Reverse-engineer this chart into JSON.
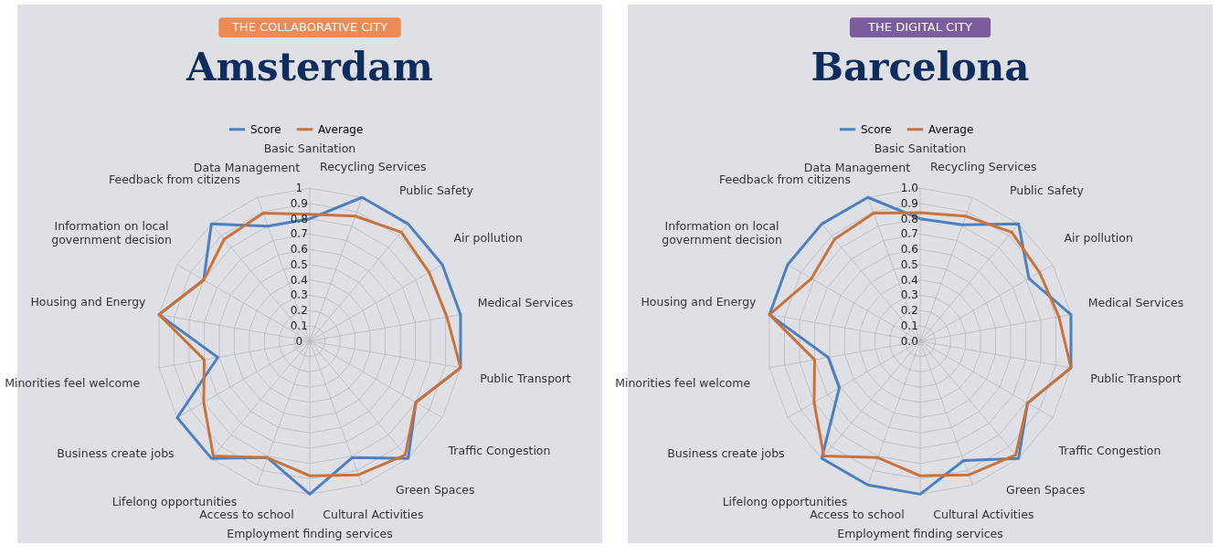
{
  "chart_data": [
    {
      "type": "radar",
      "title": "Amsterdam",
      "annotations": [
        "THE COLLABORATIVE CITY"
      ],
      "categories": [
        "Basic Sanitation",
        "Recycling Services",
        "Public Safety",
        "Air pollution",
        "Medical Services",
        "Public Transport",
        "Traffic Congestion",
        "Green Spaces",
        "Cultural Activities",
        "Employment finding services",
        "Access to school",
        "Lifelong opportunities",
        "Business create jobs",
        "Minorities feel welcome",
        "Housing and Energy",
        "Information on local government decision",
        "Feedback from citizens",
        "Data Management"
      ],
      "ylim": [
        0,
        1
      ],
      "yticks": [
        0,
        0.1,
        0.2,
        0.3,
        0.4,
        0.5,
        0.6,
        0.7,
        0.8,
        0.9,
        1
      ],
      "grid": true,
      "legend": "top",
      "series": [
        {
          "name": "Score",
          "color": "#4e7fbe",
          "values": [
            0.8,
            1.0,
            1.0,
            1.0,
            1.0,
            1.0,
            0.8,
            1.0,
            0.81,
            1.0,
            0.81,
            1.0,
            1.0,
            0.61,
            1.0,
            0.8,
            1.0,
            0.8
          ]
        },
        {
          "name": "Average",
          "color": "#c9733b",
          "values": [
            0.83,
            0.87,
            0.93,
            0.9,
            0.91,
            1.0,
            0.8,
            0.97,
            0.93,
            0.88,
            0.81,
            0.98,
            0.8,
            0.7,
            1.0,
            0.8,
            0.87,
            0.89
          ]
        }
      ]
    },
    {
      "type": "radar",
      "title": "Barcelona",
      "annotations": [
        "THE DIGITAL CITY"
      ],
      "categories": [
        "Basic Sanitation",
        "Recycling Services",
        "Public Safety",
        "Air pollution",
        "Medical Services",
        "Public Transport",
        "Traffic Congestion",
        "Green Spaces",
        "Cultural Activities",
        "Employment finding services",
        "Access to school",
        "Lifelong opportunities",
        "Business create jobs",
        "Minorities feel welcome",
        "Housing and Energy",
        "Information on local government decision",
        "Feedback from citizens",
        "Data Management"
      ],
      "ylim": [
        0,
        1
      ],
      "yticks": [
        {
          "value": 0,
          "label": "0.0"
        },
        {
          "value": 0.1,
          "label": "0.1"
        },
        {
          "value": 0.2,
          "label": "0.2"
        },
        {
          "value": 0.3,
          "label": "0.3"
        },
        {
          "value": 0.4,
          "label": "0.4"
        },
        {
          "value": 0.5,
          "label": "0.5"
        },
        {
          "value": 0.6,
          "label": "0.6"
        },
        {
          "value": 0.7,
          "label": "0.7"
        },
        {
          "value": 0.8,
          "label": "0.8"
        },
        {
          "value": 0.9,
          "label": "0.9"
        },
        {
          "value": 1,
          "label": "1.0"
        }
      ],
      "grid": true,
      "legend": "top",
      "series": [
        {
          "name": "Score",
          "color": "#4e7fbe",
          "values": [
            0.8,
            0.81,
            1.0,
            0.82,
            1.0,
            1.0,
            0.81,
            1.0,
            0.83,
            1.0,
            1.0,
            1.0,
            0.61,
            0.61,
            1.0,
            1.0,
            1.0,
            1.0
          ]
        },
        {
          "name": "Average",
          "color": "#c9733b",
          "values": [
            0.84,
            0.87,
            0.93,
            0.9,
            0.92,
            1.0,
            0.81,
            0.97,
            0.93,
            0.88,
            0.81,
            0.98,
            0.8,
            0.7,
            1.0,
            0.82,
            0.87,
            0.89
          ]
        }
      ]
    }
  ]
}
